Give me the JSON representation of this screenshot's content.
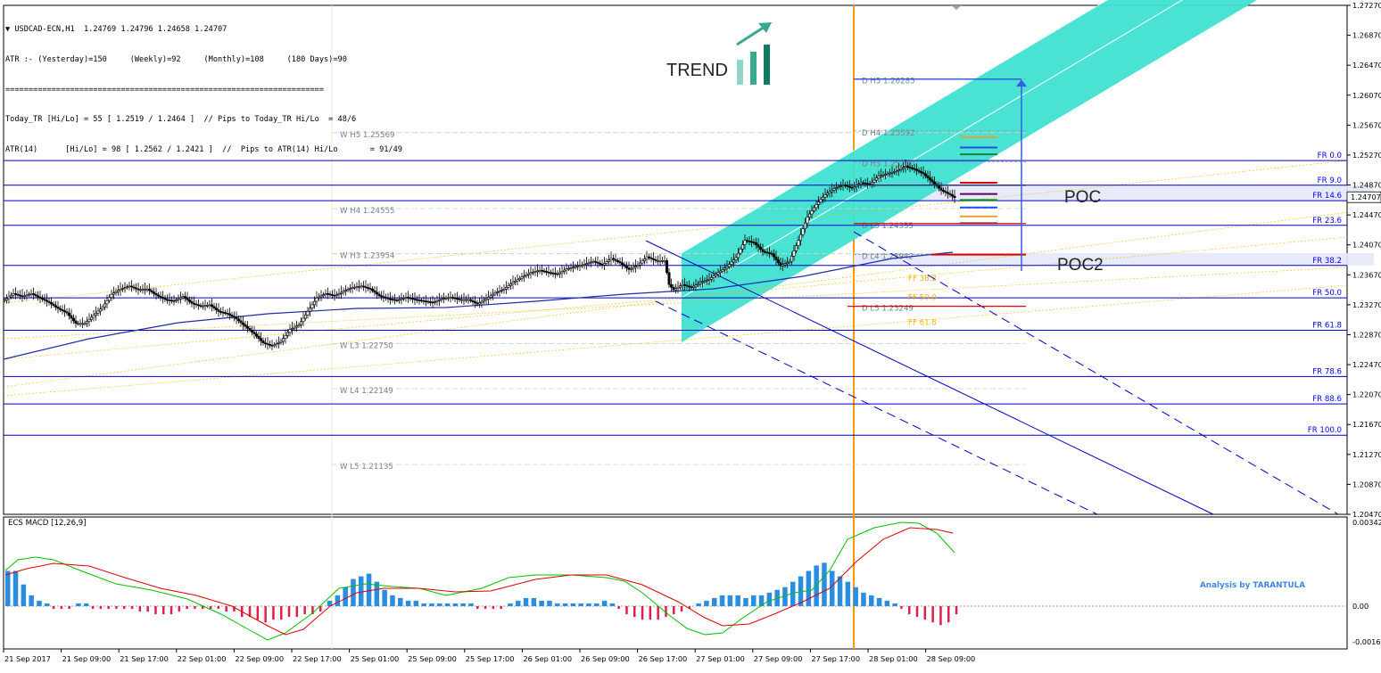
{
  "header": {
    "symbol_line": "USDCAD-ECN,H1  1.24769 1.24796 1.24658 1.24707",
    "info_lines": [
      "ATR :- (Yesterday)=150     (Weekly)=92     (Monthly)=108     (180 Days)=90",
      "=====================================================================",
      "Today_TR [Hi/Lo] = 55 [ 1.2519 / 1.2464 ]  // Pips to Today_TR Hi/Lo  = 48/6",
      "ATR(14)      [Hi/Lo] = 98 [ 1.2562 / 1.2421 ]  //  Pips to ATR(14) Hi/Lo       = 91/49"
    ]
  },
  "annotations": {
    "trend": "TREND",
    "poc": "POC",
    "poc2": "POC2",
    "credit": "Analysis by TARANTULA"
  },
  "colors": {
    "channel": "#40e0d0",
    "price_bar": "#000000",
    "ma_line": "#1f2ca8",
    "pivot_text": "#7a8290",
    "fib_line": "#0000c8",
    "fib_text": "#0000ff",
    "vline_today": "#ff9800",
    "macd_pos": "#2b8de0",
    "macd_neg": "#e0204a",
    "macd_main": "#00c000",
    "macd_signal": "#e00000"
  },
  "chart_data": [
    {
      "type": "candlestick",
      "title": "USDCAD-ECN,H1",
      "ylim": [
        1.2047,
        1.2727
      ],
      "y_ticks": [
        "1.27270",
        "1.26870",
        "1.26470",
        "1.26070",
        "1.25670",
        "1.25270",
        "1.24870",
        "1.24470",
        "1.24070",
        "1.23670",
        "1.23270",
        "1.22870",
        "1.22470",
        "1.22070",
        "1.21670",
        "1.21270",
        "1.20870",
        "1.20470"
      ],
      "current_price": "1.24707",
      "x_ticks": [
        "21 Sep 2017",
        "21 Sep 09:00",
        "21 Sep 17:00",
        "22 Sep 01:00",
        "22 Sep 09:00",
        "22 Sep 17:00",
        "25 Sep 01:00",
        "25 Sep 09:00",
        "25 Sep 17:00",
        "26 Sep 01:00",
        "26 Sep 09:00",
        "26 Sep 17:00",
        "27 Sep 01:00",
        "27 Sep 09:00",
        "27 Sep 17:00",
        "28 Sep 01:00",
        "28 Sep 09:00"
      ],
      "close_path": [
        [
          0,
          1.2333
        ],
        [
          4,
          1.2342
        ],
        [
          8,
          1.2338
        ],
        [
          12,
          1.2342
        ],
        [
          16,
          1.2336
        ],
        [
          20,
          1.233
        ],
        [
          24,
          1.2322
        ],
        [
          28,
          1.2316
        ],
        [
          32,
          1.2302
        ],
        [
          36,
          1.2302
        ],
        [
          40,
          1.2313
        ],
        [
          44,
          1.2324
        ],
        [
          48,
          1.2341
        ],
        [
          52,
          1.2348
        ],
        [
          56,
          1.2352
        ],
        [
          60,
          1.2347
        ],
        [
          64,
          1.2348
        ],
        [
          68,
          1.234
        ],
        [
          72,
          1.2334
        ],
        [
          76,
          1.2332
        ],
        [
          80,
          1.2338
        ],
        [
          84,
          1.2329
        ],
        [
          88,
          1.2325
        ],
        [
          92,
          1.2327
        ],
        [
          96,
          1.2318
        ],
        [
          100,
          1.2315
        ],
        [
          104,
          1.2308
        ],
        [
          108,
          1.2298
        ],
        [
          112,
          1.2288
        ],
        [
          116,
          1.2276
        ],
        [
          120,
          1.2272
        ],
        [
          124,
          1.2278
        ],
        [
          128,
          1.2294
        ],
        [
          132,
          1.23
        ],
        [
          136,
          1.2318
        ],
        [
          140,
          1.2336
        ],
        [
          144,
          1.2342
        ],
        [
          148,
          1.2339
        ],
        [
          152,
          1.2345
        ],
        [
          156,
          1.235
        ],
        [
          160,
          1.2352
        ],
        [
          164,
          1.2348
        ],
        [
          168,
          1.2339
        ],
        [
          172,
          1.2335
        ],
        [
          176,
          1.2333
        ],
        [
          180,
          1.2337
        ],
        [
          184,
          1.2334
        ],
        [
          188,
          1.2332
        ],
        [
          192,
          1.233
        ],
        [
          196,
          1.2335
        ],
        [
          200,
          1.2337
        ],
        [
          204,
          1.2334
        ],
        [
          208,
          1.2334
        ],
        [
          212,
          1.2328
        ],
        [
          216,
          1.2335
        ],
        [
          220,
          1.2343
        ],
        [
          224,
          1.2348
        ],
        [
          228,
          1.2357
        ],
        [
          232,
          1.2364
        ],
        [
          236,
          1.237
        ],
        [
          240,
          1.2373
        ],
        [
          244,
          1.237
        ],
        [
          248,
          1.2368
        ],
        [
          252,
          1.2375
        ],
        [
          256,
          1.2378
        ],
        [
          260,
          1.2381
        ],
        [
          264,
          1.2385
        ],
        [
          268,
          1.238
        ],
        [
          272,
          1.2389
        ],
        [
          276,
          1.2383
        ],
        [
          280,
          1.2374
        ],
        [
          284,
          1.238
        ],
        [
          288,
          1.2391
        ],
        [
          292,
          1.2386
        ],
        [
          296,
          1.2386
        ],
        [
          298,
          1.2354
        ],
        [
          300,
          1.2347
        ],
        [
          304,
          1.2354
        ],
        [
          308,
          1.235
        ],
        [
          312,
          1.2357
        ],
        [
          316,
          1.2361
        ],
        [
          320,
          1.237
        ],
        [
          324,
          1.2378
        ],
        [
          328,
          1.239
        ],
        [
          332,
          1.2413
        ],
        [
          336,
          1.241
        ],
        [
          340,
          1.2398
        ],
        [
          344,
          1.2395
        ],
        [
          348,
          1.2379
        ],
        [
          352,
          1.2385
        ],
        [
          356,
          1.2413
        ],
        [
          360,
          1.2444
        ],
        [
          364,
          1.2461
        ],
        [
          368,
          1.2474
        ],
        [
          372,
          1.2482
        ],
        [
          376,
          1.2487
        ],
        [
          380,
          1.2483
        ],
        [
          384,
          1.249
        ],
        [
          388,
          1.2488
        ],
        [
          392,
          1.2499
        ],
        [
          396,
          1.2502
        ],
        [
          400,
          1.2506
        ],
        [
          404,
          1.2512
        ],
        [
          408,
          1.2508
        ],
        [
          412,
          1.2502
        ],
        [
          416,
          1.2491
        ],
        [
          420,
          1.248
        ],
        [
          424,
          1.2474
        ],
        [
          426,
          1.247
        ]
      ],
      "fibonacci": [
        {
          "label": "FR   0.0",
          "price": 1.25197
        },
        {
          "label": "FR   9.0",
          "price": 1.24867
        },
        {
          "label": "FR   14.6",
          "price": 1.24661
        },
        {
          "label": "FR   23.6",
          "price": 1.24331
        },
        {
          "label": "FR   38.2",
          "price": 1.23795
        },
        {
          "label": "FR   50.0",
          "price": 1.23362
        },
        {
          "label": "FR   61.8",
          "price": 1.22929
        },
        {
          "label": "FR   78.6",
          "price": 1.22312
        },
        {
          "label": "FR   88.6",
          "price": 1.21945
        },
        {
          "label": "FR   100.0",
          "price": 1.21527
        }
      ],
      "weekly_pivots": [
        {
          "label": "W  H5 1.25569",
          "price": 1.25569
        },
        {
          "label": "W  H4 1.24555",
          "price": 1.24555
        },
        {
          "label": "W  H3 1.23954",
          "price": 1.23954
        },
        {
          "label": "W  L3 1.22750",
          "price": 1.2275
        },
        {
          "label": "W  L4 1.22149",
          "price": 1.22149
        },
        {
          "label": "W  L5 1.21135",
          "price": 1.21135
        }
      ],
      "daily_pivots": [
        {
          "label": "D  H5 1.26285",
          "price": 1.26285
        },
        {
          "label": "D  H4 1.25592",
          "price": 1.25592
        },
        {
          "label": "D  H3 1.25180",
          "price": 1.2518
        },
        {
          "label": "D  L3 1.24355",
          "price": 1.24355
        },
        {
          "label": "D  L4 1.23942",
          "price": 1.23942
        },
        {
          "label": "D  L5 1.23249",
          "price": 1.23249
        }
      ],
      "fib_fan_labels": [
        "FF  38.2",
        "FF  50.0",
        "FF  61.8"
      ],
      "poc_zones": [
        {
          "label": "POC",
          "from": 1.24867,
          "to": 1.24661
        },
        {
          "label": "POC2",
          "from": 1.23961,
          "to": 1.23795
        }
      ]
    },
    {
      "type": "bar",
      "title": "ECS MACD [12,26,9]",
      "ylim": [
        -0.0016,
        0.00342
      ],
      "y_ticks": [
        "0.00342",
        "0.00",
        "-0.00160"
      ],
      "histogram": [
        0.0013,
        0.0013,
        0.0008,
        0.0004,
        0.0002,
        0.0001,
        -0.0001,
        -0.0001,
        -0.0001,
        0.0001,
        0.0001,
        -0.0001,
        -0.0001,
        -0.0001,
        -0.0001,
        -0.0001,
        -0.0001,
        -0.0002,
        -0.0002,
        -0.0003,
        -0.0003,
        -0.0003,
        -0.0002,
        -0.0001,
        -0.0001,
        -0.0001,
        -0.0001,
        -0.0001,
        -0.0002,
        -0.0002,
        -0.0004,
        -0.0004,
        -0.0005,
        -0.0006,
        -0.0005,
        -0.0005,
        -0.0004,
        -0.0004,
        -0.0003,
        -0.0003,
        -0.0002,
        0.0002,
        0.0004,
        0.0007,
        0.001,
        0.0011,
        0.0012,
        0.0009,
        0.0006,
        0.0004,
        0.0003,
        0.0002,
        0.0002,
        0.0001,
        0.0001,
        0.0001,
        0.0001,
        0.0001,
        0.0001,
        0.0001,
        -0.0001,
        -0.0001,
        -0.0001,
        -0.0001,
        0.0001,
        0.0002,
        0.0003,
        0.0003,
        0.0002,
        0.0002,
        0.0001,
        0.0001,
        0.0001,
        0.0001,
        0.0001,
        0.0001,
        0.0002,
        0.0001,
        -0.0001,
        -0.0003,
        -0.0004,
        -0.0005,
        -0.0005,
        -0.0005,
        -0.0004,
        -0.0003,
        -0.0002,
        -0.0001,
        0.0001,
        0.0002,
        0.0003,
        0.0004,
        0.0004,
        0.0004,
        0.0003,
        0.0004,
        0.0004,
        0.0005,
        0.0006,
        0.0007,
        0.0009,
        0.0011,
        0.0013,
        0.0015,
        0.0016,
        0.0013,
        0.0011,
        0.0009,
        0.0007,
        0.0005,
        0.0004,
        0.0003,
        0.0002,
        0.0001,
        -0.0001,
        -0.0003,
        -0.0004,
        -0.0005,
        -0.0006,
        -0.0007,
        -0.0006,
        -0.0003
      ]
    }
  ]
}
